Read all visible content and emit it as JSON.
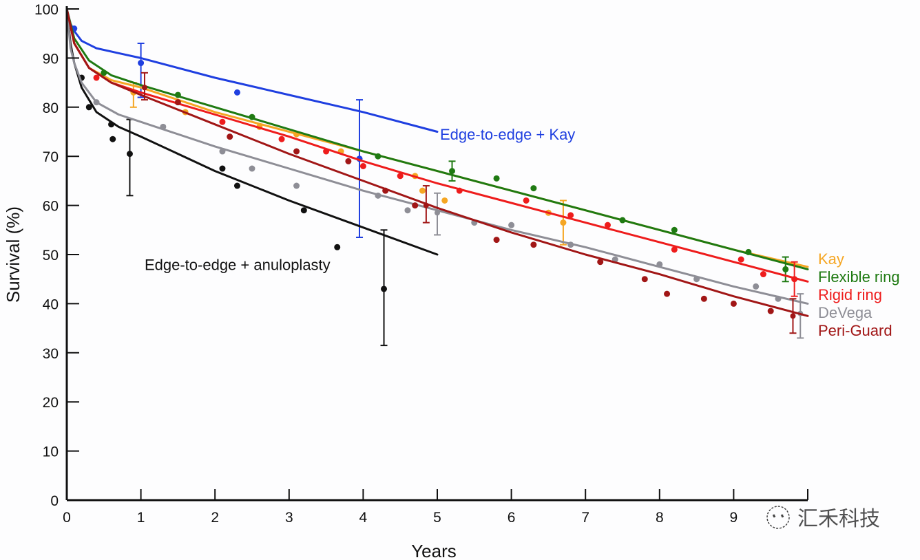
{
  "chart_data": {
    "type": "line",
    "title": "",
    "xlabel": "Years",
    "ylabel": "Survival (%)",
    "xlim": [
      0,
      10
    ],
    "ylim": [
      0,
      100
    ],
    "xticks": [
      0,
      1,
      2,
      3,
      4,
      5,
      6,
      7,
      8,
      9,
      10
    ],
    "xtick_labels": [
      "0",
      "1",
      "2",
      "3",
      "4",
      "5",
      "6",
      "7",
      "8",
      "9",
      ""
    ],
    "yticks": [
      0,
      10,
      20,
      30,
      40,
      50,
      60,
      70,
      80,
      90,
      100
    ],
    "ytick_labels": [
      "0",
      "10",
      "20",
      "30",
      "40",
      "50",
      "60",
      "70",
      "80",
      "90",
      "100"
    ],
    "grid": false,
    "legend_position": "right",
    "series": [
      {
        "name": "Edge-to-edge + Kay",
        "color": "#1f3fe0",
        "label_position": "inline",
        "x": [
          0,
          0.05,
          0.1,
          0.2,
          0.4,
          0.7,
          1,
          2,
          3,
          4,
          5
        ],
        "y": [
          100,
          97,
          95.5,
          93.5,
          92,
          91,
          90,
          86,
          82.5,
          79,
          75
        ],
        "points": [
          [
            0.1,
            96
          ],
          [
            1,
            89
          ],
          [
            2.3,
            83
          ],
          [
            3.95,
            69.5
          ]
        ],
        "error_bars": [
          {
            "x": 1,
            "y": 89,
            "low": 82,
            "high": 93
          },
          {
            "x": 3.95,
            "y": 69.5,
            "low": 53.5,
            "high": 81.5
          }
        ]
      },
      {
        "name": "Edge-to-edge + anuloplasty",
        "color": "#111111",
        "label_position": "inline",
        "x": [
          0,
          0.05,
          0.1,
          0.2,
          0.4,
          0.7,
          1,
          2,
          3,
          4,
          5
        ],
        "y": [
          100,
          93,
          89,
          84,
          79,
          76,
          74,
          67,
          61,
          55.5,
          50
        ],
        "points": [
          [
            0.2,
            86
          ],
          [
            0.3,
            80
          ],
          [
            0.6,
            76.5
          ],
          [
            0.62,
            73.5
          ],
          [
            0.85,
            70.5
          ],
          [
            2.1,
            67.5
          ],
          [
            2.3,
            64
          ],
          [
            3.2,
            59
          ],
          [
            3.65,
            51.5
          ],
          [
            4.28,
            43
          ]
        ],
        "error_bars": [
          {
            "x": 0.85,
            "y": 70.5,
            "low": 62,
            "high": 77.5
          },
          {
            "x": 4.28,
            "y": 43,
            "low": 31.5,
            "high": 55
          }
        ]
      },
      {
        "name": "Kay",
        "color": "#f5a623",
        "label_position": "legend",
        "x": [
          0,
          0.1,
          0.3,
          0.6,
          1,
          2,
          3,
          4,
          5,
          6,
          7,
          8,
          9,
          10
        ],
        "y": [
          100,
          93,
          88,
          85.5,
          84,
          79,
          75,
          71,
          67,
          63,
          59,
          55,
          51,
          47.5
        ],
        "points": [
          [
            0.9,
            83
          ],
          [
            1.6,
            79
          ],
          [
            2.6,
            76
          ],
          [
            3.1,
            74.5
          ],
          [
            3.7,
            71
          ],
          [
            4.7,
            66
          ],
          [
            4.8,
            63
          ],
          [
            5.1,
            61
          ],
          [
            6.5,
            58.5
          ],
          [
            6.7,
            56.5
          ]
        ],
        "error_bars": [
          {
            "x": 0.9,
            "y": 83,
            "low": 80,
            "high": 85
          },
          {
            "x": 6.7,
            "y": 56.5,
            "low": 52,
            "high": 61
          }
        ]
      },
      {
        "name": "Flexible ring",
        "color": "#1f7a12",
        "label_position": "legend",
        "x": [
          0,
          0.1,
          0.3,
          0.6,
          1,
          2,
          3,
          4,
          5,
          6,
          7,
          8,
          9,
          10
        ],
        "y": [
          100,
          94,
          89.5,
          86.5,
          84.5,
          80,
          75.5,
          71,
          67,
          63,
          59,
          55,
          51,
          47
        ],
        "points": [
          [
            0.5,
            87
          ],
          [
            1.5,
            82.5
          ],
          [
            2.5,
            78
          ],
          [
            4.2,
            70
          ],
          [
            5.2,
            67
          ],
          [
            5.8,
            65.5
          ],
          [
            6.3,
            63.5
          ],
          [
            7.5,
            57
          ],
          [
            8.2,
            55
          ],
          [
            9.2,
            50.5
          ],
          [
            9.7,
            47
          ]
        ],
        "error_bars": [
          {
            "x": 5.2,
            "y": 67,
            "low": 65,
            "high": 69
          },
          {
            "x": 9.7,
            "y": 47,
            "low": 44.5,
            "high": 49.5
          }
        ]
      },
      {
        "name": "Rigid ring",
        "color": "#ee1c1c",
        "label_position": "legend",
        "x": [
          0,
          0.1,
          0.3,
          0.6,
          1,
          2,
          3,
          4,
          5,
          6,
          7,
          8,
          9,
          10
        ],
        "y": [
          100,
          93,
          88,
          85,
          83,
          78.5,
          74,
          69,
          64.5,
          60.5,
          56.5,
          52.5,
          48.5,
          44.5
        ],
        "points": [
          [
            0.4,
            86
          ],
          [
            2.1,
            77
          ],
          [
            2.9,
            73.5
          ],
          [
            3.5,
            71
          ],
          [
            4.0,
            68
          ],
          [
            4.5,
            66
          ],
          [
            5.3,
            63
          ],
          [
            6.2,
            61
          ],
          [
            6.8,
            58
          ],
          [
            7.3,
            56
          ],
          [
            8.2,
            51
          ],
          [
            9.1,
            49
          ],
          [
            9.4,
            46
          ],
          [
            9.82,
            45
          ]
        ],
        "error_bars": [
          {
            "x": 9.82,
            "y": 45,
            "low": 41.5,
            "high": 48.5
          }
        ]
      },
      {
        "name": "DeVega",
        "color": "#8e8e96",
        "label_position": "legend",
        "x": [
          0,
          0.05,
          0.1,
          0.2,
          0.4,
          0.7,
          1,
          2,
          3,
          4,
          5,
          6,
          7,
          8,
          9,
          10
        ],
        "y": [
          100,
          92,
          89,
          85,
          81,
          78.5,
          77,
          72,
          67.5,
          63,
          59,
          55,
          51.5,
          47.5,
          43.5,
          40
        ],
        "points": [
          [
            0.4,
            81
          ],
          [
            1.3,
            76
          ],
          [
            2.1,
            71
          ],
          [
            2.5,
            67.5
          ],
          [
            3.1,
            64
          ],
          [
            4.2,
            62
          ],
          [
            4.6,
            59
          ],
          [
            5.5,
            56.5
          ],
          [
            6.0,
            56
          ],
          [
            6.8,
            52
          ],
          [
            7.4,
            49
          ],
          [
            8.0,
            48
          ],
          [
            8.5,
            45
          ],
          [
            9.3,
            43.5
          ],
          [
            9.6,
            41
          ]
        ],
        "error_bars": [
          {
            "x": 5.0,
            "y": 58.5,
            "low": 54,
            "high": 62.5
          },
          {
            "x": 9.9,
            "y": 38,
            "low": 33,
            "high": 42
          }
        ]
      },
      {
        "name": "Peri-Guard",
        "color": "#a11616",
        "label_position": "legend",
        "x": [
          0,
          0.1,
          0.3,
          0.6,
          1,
          2,
          3,
          4,
          5,
          6,
          7,
          8,
          9,
          10
        ],
        "y": [
          100,
          93,
          88,
          85,
          82.5,
          76.5,
          70.5,
          65,
          59.5,
          54.5,
          50,
          46,
          41.5,
          37.5
        ],
        "points": [
          [
            1.5,
            81
          ],
          [
            2.2,
            74
          ],
          [
            3.1,
            71
          ],
          [
            3.8,
            69
          ],
          [
            4.3,
            63
          ],
          [
            4.7,
            60
          ],
          [
            5.8,
            53
          ],
          [
            6.3,
            52
          ],
          [
            7.2,
            48.5
          ],
          [
            7.8,
            45
          ],
          [
            8.1,
            42
          ],
          [
            8.6,
            41
          ],
          [
            9.0,
            40
          ],
          [
            9.5,
            38.5
          ]
        ],
        "error_bars": [
          {
            "x": 1.05,
            "y": 84,
            "low": 81.5,
            "high": 87
          },
          {
            "x": 4.85,
            "y": 60,
            "low": 56.5,
            "high": 64
          },
          {
            "x": 9.8,
            "y": 37.5,
            "low": 34,
            "high": 41
          }
        ]
      }
    ],
    "annotations": [
      {
        "text": "Edge-to-edge + Kay",
        "x": 5.0,
        "y": 74.5,
        "color": "#1f3fe0"
      },
      {
        "text": "Edge-to-edge + anuloplasty",
        "x": 1.05,
        "y": 48,
        "color": "#111111"
      }
    ]
  },
  "watermark": {
    "text": "汇禾科技",
    "icon": "wechat-chat-icon"
  }
}
